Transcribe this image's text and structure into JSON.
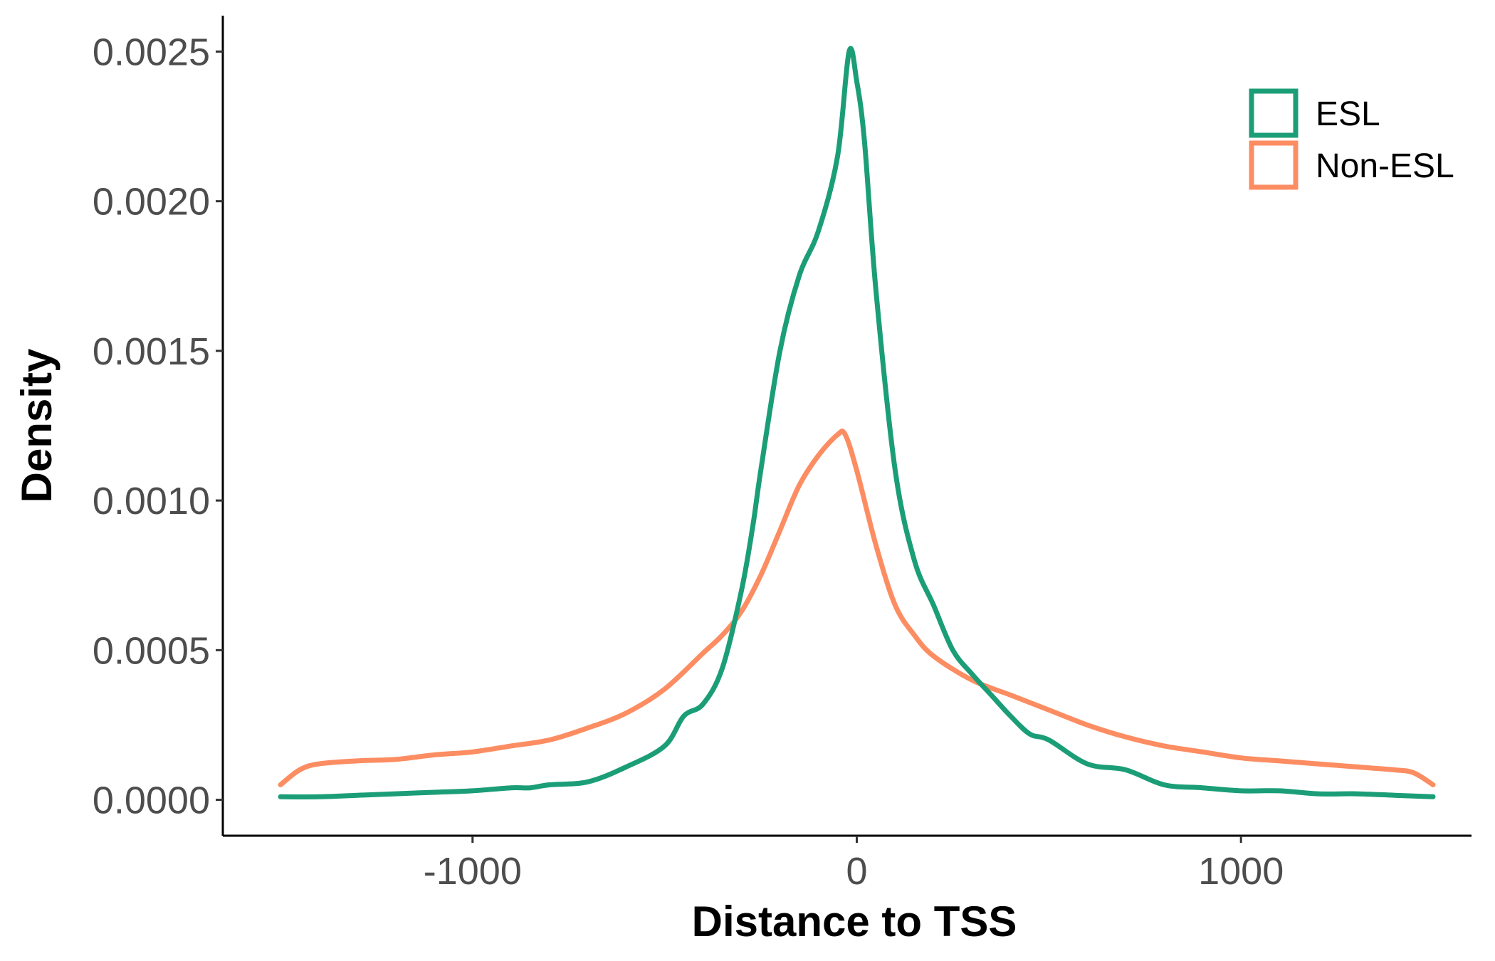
{
  "chart_data": {
    "type": "line",
    "title": "",
    "xlabel": "Distance to TSS",
    "ylabel": "Density",
    "xlim": [
      -1650,
      1600
    ],
    "ylim": [
      -0.00012,
      0.00262
    ],
    "x_ticks": [
      -1000,
      0,
      1000
    ],
    "x_tick_labels": [
      "-1000",
      "0",
      "1000"
    ],
    "y_ticks": [
      0,
      0.0005,
      0.001,
      0.0015,
      0.002,
      0.0025
    ],
    "y_tick_labels": [
      "0.0000",
      "0.0005",
      "0.0010",
      "0.0015",
      "0.0020",
      "0.0025"
    ],
    "grid": false,
    "legend_position": "top-right",
    "series": [
      {
        "name": "ESL",
        "color": "#1b9e77",
        "x": [
          -1500,
          -1400,
          -1300,
          -1200,
          -1100,
          -1000,
          -900,
          -850,
          -800,
          -700,
          -600,
          -500,
          -450,
          -400,
          -350,
          -300,
          -270,
          -250,
          -200,
          -150,
          -100,
          -50,
          -20,
          0,
          20,
          50,
          100,
          150,
          200,
          250,
          300,
          350,
          400,
          450,
          500,
          600,
          700,
          800,
          900,
          1000,
          1100,
          1200,
          1300,
          1400,
          1500
        ],
        "y": [
          1e-05,
          1e-05,
          1.5e-05,
          2e-05,
          2.5e-05,
          3e-05,
          4e-05,
          4e-05,
          5e-05,
          6e-05,
          0.00011,
          0.00018,
          0.00028,
          0.00032,
          0.00044,
          0.0007,
          0.00092,
          0.0011,
          0.0015,
          0.00175,
          0.0019,
          0.00215,
          0.0025,
          0.0024,
          0.0022,
          0.0017,
          0.0011,
          0.0008,
          0.00065,
          0.0005,
          0.00042,
          0.00035,
          0.00028,
          0.00022,
          0.0002,
          0.00012,
          0.0001,
          5e-05,
          4e-05,
          3e-05,
          3e-05,
          2e-05,
          2e-05,
          1.5e-05,
          1e-05
        ]
      },
      {
        "name": "Non-ESL",
        "color": "#fc8d62",
        "x": [
          -1500,
          -1450,
          -1400,
          -1300,
          -1200,
          -1100,
          -1000,
          -900,
          -800,
          -700,
          -600,
          -500,
          -400,
          -350,
          -300,
          -250,
          -200,
          -150,
          -100,
          -50,
          -30,
          0,
          50,
          100,
          150,
          200,
          300,
          400,
          500,
          600,
          700,
          800,
          900,
          1000,
          1100,
          1200,
          1300,
          1400,
          1450,
          1500
        ],
        "y": [
          5e-05,
          0.0001,
          0.00012,
          0.00013,
          0.000135,
          0.00015,
          0.00016,
          0.00018,
          0.0002,
          0.00024,
          0.00029,
          0.00037,
          0.00049,
          0.00055,
          0.00063,
          0.00075,
          0.0009,
          0.00105,
          0.00115,
          0.00122,
          0.00122,
          0.0011,
          0.00085,
          0.00065,
          0.00055,
          0.00048,
          0.0004,
          0.00035,
          0.0003,
          0.00025,
          0.00021,
          0.00018,
          0.00016,
          0.00014,
          0.00013,
          0.00012,
          0.00011,
          0.0001,
          9e-05,
          5e-05
        ]
      }
    ]
  }
}
